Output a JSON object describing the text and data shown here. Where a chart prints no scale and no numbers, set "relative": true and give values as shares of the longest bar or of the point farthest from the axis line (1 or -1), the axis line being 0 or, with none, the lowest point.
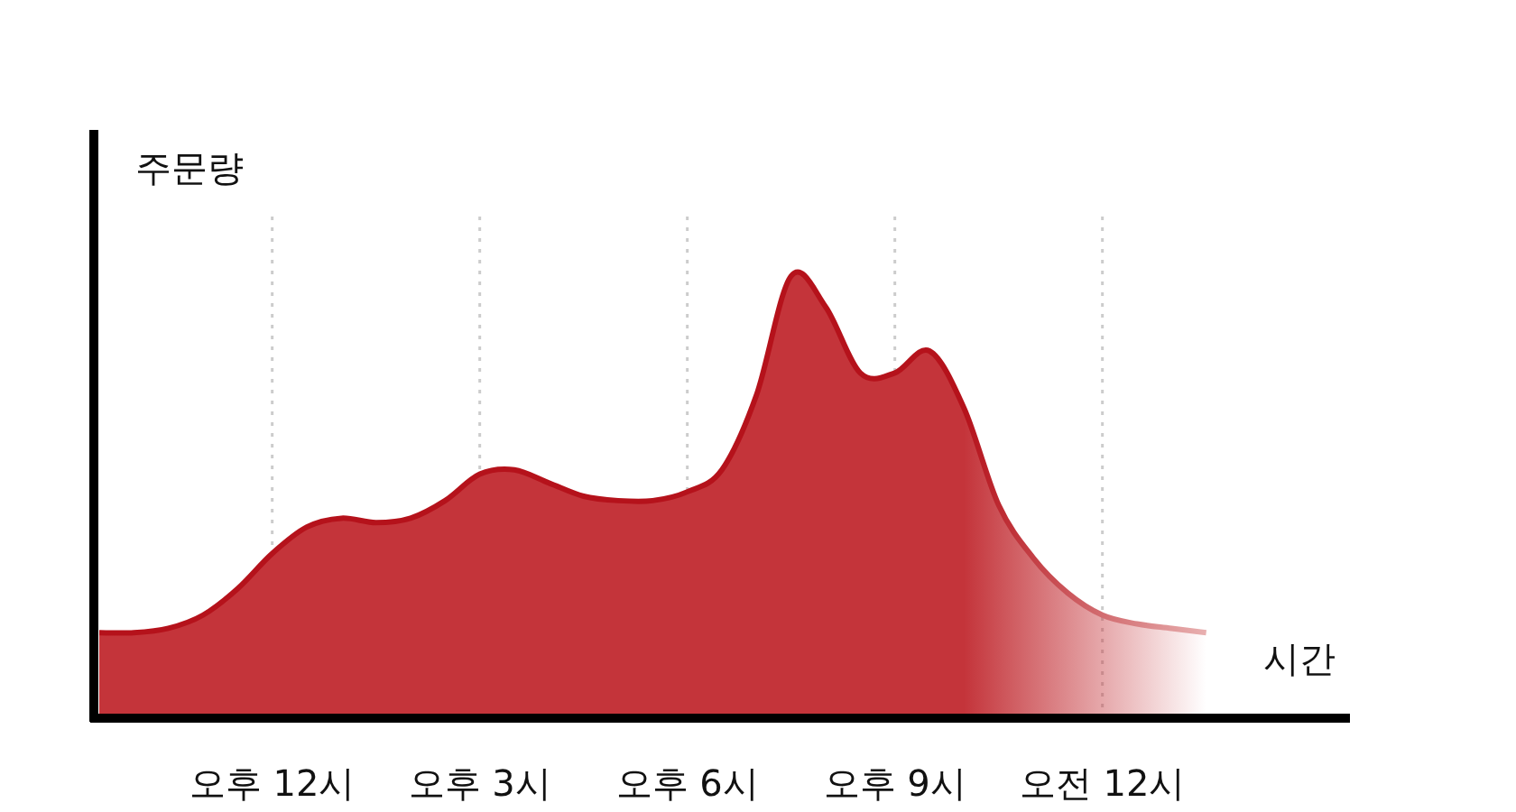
{
  "chart_data": {
    "type": "area",
    "relative": true,
    "ylabel": "주문량",
    "xlabel": "시간",
    "color": "#c4343a",
    "grid": "x",
    "categories": [
      null,
      null,
      null,
      null,
      null,
      "오후 12시",
      null,
      null,
      null,
      null,
      null,
      "오후 3시",
      null,
      null,
      null,
      null,
      null,
      "오후 6시",
      null,
      null,
      null,
      null,
      null,
      "오후 9시",
      null,
      null,
      null,
      null,
      null,
      "오전 12시",
      null,
      null,
      null
    ],
    "values": [
      0.19,
      0.19,
      0.2,
      0.23,
      0.29,
      0.37,
      0.43,
      0.45,
      0.44,
      0.45,
      0.49,
      0.55,
      0.56,
      0.53,
      0.5,
      0.49,
      0.49,
      0.51,
      0.56,
      0.73,
      1.0,
      0.93,
      0.78,
      0.78,
      0.83,
      0.7,
      0.48,
      0.36,
      0.28,
      0.23,
      0.21,
      0.2,
      0.19
    ]
  }
}
